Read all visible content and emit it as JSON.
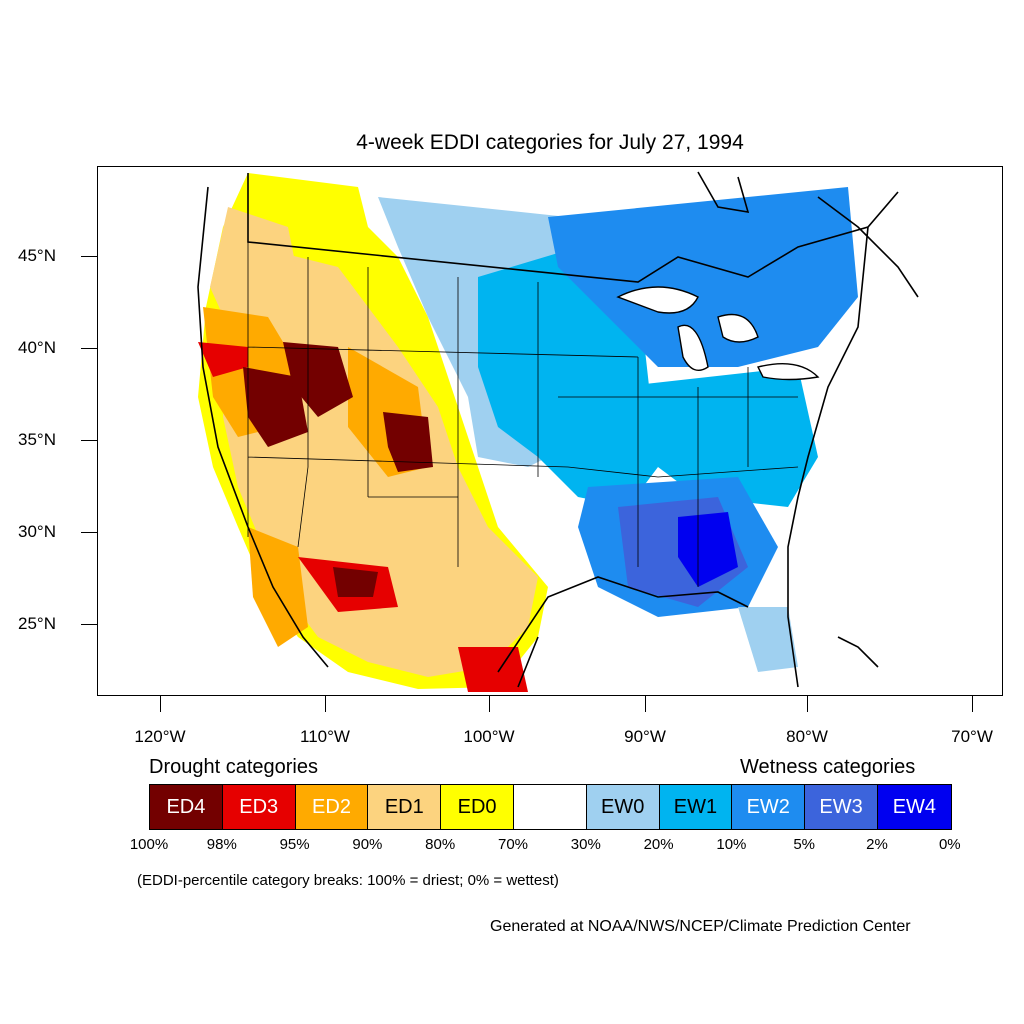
{
  "title": "4-week EDDI categories for July 27, 1994",
  "latitude_labels": [
    "45°N",
    "40°N",
    "35°N",
    "30°N",
    "25°N"
  ],
  "longitude_labels": [
    "120°W",
    "110°W",
    "100°W",
    "90°W",
    "80°W",
    "70°W"
  ],
  "legend": {
    "drought_heading": "Drought categories",
    "wetness_heading": "Wetness categories",
    "categories": [
      {
        "label": "ED4",
        "color": "#730000",
        "text_color": "#ffffff"
      },
      {
        "label": "ED3",
        "color": "#e60000",
        "text_color": "#ffffff"
      },
      {
        "label": "ED2",
        "color": "#ffaa00",
        "text_color": "#ffffff"
      },
      {
        "label": "ED1",
        "color": "#fcd37f",
        "text_color": "#000000"
      },
      {
        "label": "ED0",
        "color": "#ffff00",
        "text_color": "#000000"
      },
      {
        "label": "",
        "color": "#ffffff",
        "text_color": "#000000"
      },
      {
        "label": "EW0",
        "color": "#9fd0f0",
        "text_color": "#000000"
      },
      {
        "label": "EW1",
        "color": "#00b4f0",
        "text_color": "#000000"
      },
      {
        "label": "EW2",
        "color": "#1e8cf0",
        "text_color": "#ffffff"
      },
      {
        "label": "EW3",
        "color": "#3c64dc",
        "text_color": "#ffffff"
      },
      {
        "label": "EW4",
        "color": "#0000f0",
        "text_color": "#ffffff"
      }
    ],
    "percentiles": [
      "100%",
      "98%",
      "95%",
      "90%",
      "80%",
      "70%",
      "30%",
      "20%",
      "10%",
      "5%",
      "2%",
      "0%"
    ]
  },
  "note": "(EDDI-percentile category breaks: 100% = driest; 0% = wettest)",
  "credit": "Generated at NOAA/NWS/NCEP/Climate Prediction Center"
}
